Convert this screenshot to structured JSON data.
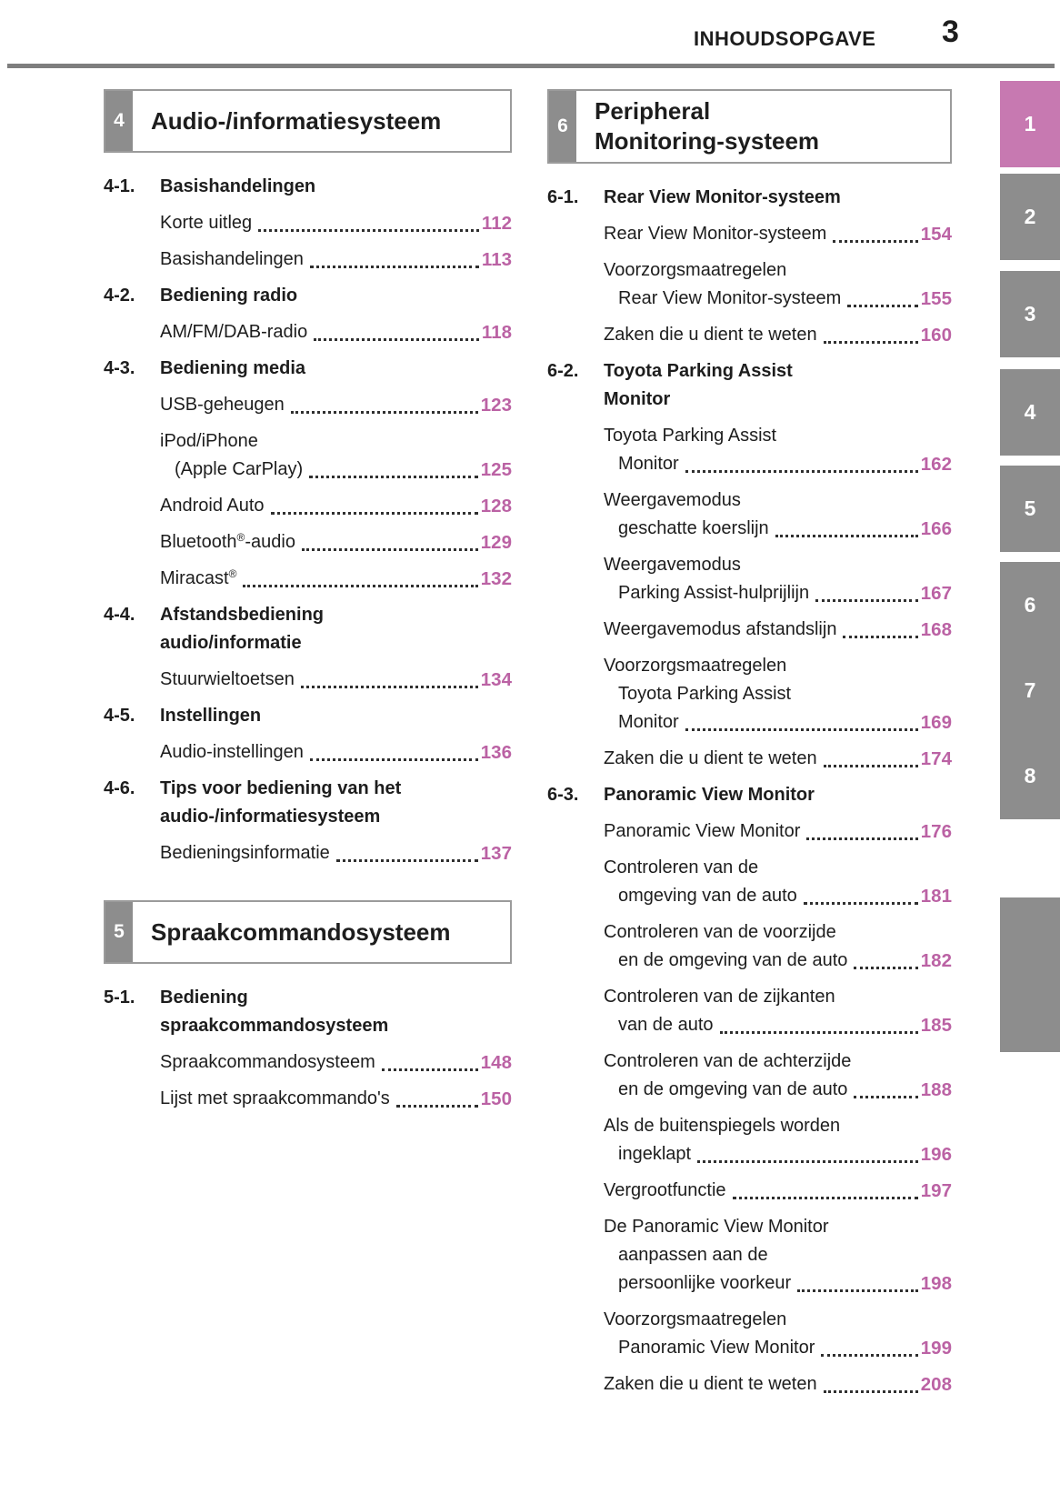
{
  "header": {
    "title": "INHOUDSOPGAVE",
    "page_number": "3"
  },
  "colors": {
    "accent_page_number": "#bb62a4",
    "active_tab_pink": "#c779b1",
    "tab_gray": "#8d8d8d",
    "rule_gray": "#7e7e7e"
  },
  "left_column": {
    "sections": [
      {
        "number": "4",
        "title_lines": [
          "Audio-/informatiesysteem"
        ],
        "groups": [
          {
            "number": "4-1.",
            "title_lines": [
              "Basishandelingen"
            ],
            "entries": [
              {
                "lines": [
                  "Korte uitleg"
                ],
                "page": "112"
              },
              {
                "lines": [
                  "Basishandelingen"
                ],
                "page": "113"
              }
            ]
          },
          {
            "number": "4-2.",
            "title_lines": [
              "Bediening radio"
            ],
            "entries": [
              {
                "lines": [
                  "AM/FM/DAB-radio"
                ],
                "page": "118"
              }
            ]
          },
          {
            "number": "4-3.",
            "title_lines": [
              "Bediening media"
            ],
            "entries": [
              {
                "lines": [
                  "USB-geheugen"
                ],
                "page": "123"
              },
              {
                "lines": [
                  "iPod/iPhone",
                  "(Apple CarPlay)"
                ],
                "page": "125"
              },
              {
                "lines": [
                  "Android Auto"
                ],
                "page": "128"
              },
              {
                "lines": [
                  "Bluetooth®-audio"
                ],
                "page": "129"
              },
              {
                "lines": [
                  "Miracast®"
                ],
                "page": "132"
              }
            ]
          },
          {
            "number": "4-4.",
            "title_lines": [
              "Afstandsbediening",
              "audio/informatie"
            ],
            "entries": [
              {
                "lines": [
                  "Stuurwieltoetsen"
                ],
                "page": "134"
              }
            ]
          },
          {
            "number": "4-5.",
            "title_lines": [
              "Instellingen"
            ],
            "entries": [
              {
                "lines": [
                  "Audio-instellingen"
                ],
                "page": "136"
              }
            ]
          },
          {
            "number": "4-6.",
            "title_lines": [
              "Tips voor bediening van het",
              "audio-/informatiesysteem"
            ],
            "entries": [
              {
                "lines": [
                  "Bedieningsinformatie"
                ],
                "page": "137"
              }
            ]
          }
        ]
      },
      {
        "number": "5",
        "title_lines": [
          "Spraakcommandosysteem"
        ],
        "groups": [
          {
            "number": "5-1.",
            "title_lines": [
              "Bediening",
              "spraakcommandosysteem"
            ],
            "entries": [
              {
                "lines": [
                  "Spraakcommandosysteem"
                ],
                "page": "148"
              },
              {
                "lines": [
                  "Lijst met spraakcommando's"
                ],
                "page": "150"
              }
            ]
          }
        ]
      }
    ]
  },
  "right_column": {
    "sections": [
      {
        "number": "6",
        "title_lines": [
          "Peripheral",
          "Monitoring-systeem"
        ],
        "groups": [
          {
            "number": "6-1.",
            "title_lines": [
              "Rear View Monitor-systeem"
            ],
            "entries": [
              {
                "lines": [
                  "Rear View Monitor-systeem"
                ],
                "page": "154"
              },
              {
                "lines": [
                  "Voorzorgsmaatregelen",
                  "Rear View Monitor-systeem"
                ],
                "page": "155"
              },
              {
                "lines": [
                  "Zaken die u dient te weten"
                ],
                "page": "160"
              }
            ]
          },
          {
            "number": "6-2.",
            "title_lines": [
              "Toyota Parking Assist",
              "Monitor"
            ],
            "entries": [
              {
                "lines": [
                  "Toyota Parking Assist",
                  "Monitor"
                ],
                "page": "162"
              },
              {
                "lines": [
                  "Weergavemodus",
                  "geschatte koerslijn"
                ],
                "page": "166"
              },
              {
                "lines": [
                  "Weergavemodus",
                  "Parking Assist-hulprijlijn"
                ],
                "page": "167"
              },
              {
                "lines": [
                  "Weergavemodus afstandslijn"
                ],
                "page": "168"
              },
              {
                "lines": [
                  "Voorzorgsmaatregelen",
                  "Toyota Parking Assist",
                  "Monitor"
                ],
                "page": "169"
              },
              {
                "lines": [
                  "Zaken die u dient te weten"
                ],
                "page": "174"
              }
            ]
          },
          {
            "number": "6-3.",
            "title_lines": [
              "Panoramic View Monitor"
            ],
            "entries": [
              {
                "lines": [
                  "Panoramic View Monitor"
                ],
                "page": "176"
              },
              {
                "lines": [
                  "Controleren van de",
                  "omgeving van de auto"
                ],
                "page": "181"
              },
              {
                "lines": [
                  "Controleren van de voorzijde",
                  "en de omgeving van de auto"
                ],
                "page": "182"
              },
              {
                "lines": [
                  "Controleren van de zijkanten",
                  "van de auto"
                ],
                "page": "185"
              },
              {
                "lines": [
                  "Controleren van de achterzijde",
                  "en de omgeving van de auto"
                ],
                "page": "188"
              },
              {
                "lines": [
                  "Als de buitenspiegels worden",
                  "ingeklapt"
                ],
                "page": "196"
              },
              {
                "lines": [
                  "Vergrootfunctie"
                ],
                "page": "197"
              },
              {
                "lines": [
                  "De Panoramic View Monitor",
                  "aanpassen aan de",
                  "persoonlijke voorkeur"
                ],
                "page": "198"
              },
              {
                "lines": [
                  "Voorzorgsmaatregelen",
                  "Panoramic View Monitor"
                ],
                "page": "199"
              },
              {
                "lines": [
                  "Zaken die u dient te weten"
                ],
                "page": "208"
              }
            ]
          }
        ]
      }
    ]
  },
  "side_tabs": {
    "labels": [
      "1",
      "2",
      "3",
      "4",
      "5",
      "6",
      "7",
      "8"
    ],
    "active_label": "1"
  }
}
